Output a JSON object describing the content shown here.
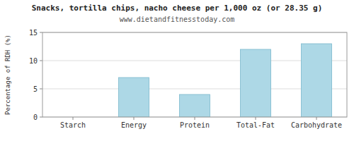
{
  "chart_data": {
    "type": "bar",
    "title": "Snacks, tortilla chips, nacho cheese per 1,000 oz (or 28.35 g)",
    "subtitle": "www.dietandfitnesstoday.com",
    "categories": [
      "Starch",
      "Energy",
      "Protein",
      "Total-Fat",
      "Carbohydrate"
    ],
    "values": [
      0,
      7.0,
      4.0,
      12.0,
      13.0
    ],
    "color": "#add8e6",
    "ylabel": "Percentage of RDH (%)",
    "ylim": [
      0,
      15
    ],
    "yticks": [
      0,
      5,
      10,
      15
    ],
    "grid": true
  }
}
